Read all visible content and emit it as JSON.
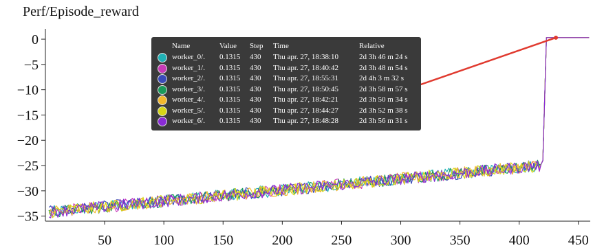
{
  "title": "Perf/Episode_reward",
  "chart_data": {
    "type": "line",
    "title": "Perf/Episode_reward",
    "xlabel": "",
    "ylabel": "",
    "xlim": [
      0,
      460
    ],
    "ylim": [
      -36,
      1.5
    ],
    "xticks": [
      50,
      100,
      150,
      200,
      250,
      300,
      350,
      400,
      450
    ],
    "yticks": [
      0,
      -5,
      -10,
      -15,
      -20,
      -25,
      -30,
      -35
    ],
    "grid": false,
    "series": [
      {
        "name": "worker_0/.",
        "color": "#20b2b6"
      },
      {
        "name": "worker_1/.",
        "color": "#c83bb8"
      },
      {
        "name": "worker_2/.",
        "color": "#3b4bb8"
      },
      {
        "name": "worker_3/.",
        "color": "#1a9a5a"
      },
      {
        "name": "worker_4/.",
        "color": "#f2b82c"
      },
      {
        "name": "worker_5/.",
        "color": "#d6d616"
      },
      {
        "name": "worker_6/.",
        "color": "#8a2bd6"
      }
    ],
    "trend": {
      "x": [
        3,
        418,
        420,
        423,
        460
      ],
      "y": [
        -34.2,
        -25.0,
        -24.0,
        0.3,
        0.3
      ]
    },
    "noise_amplitude": 1.2,
    "highlight": {
      "x": [
        314,
        431
      ],
      "y": [
        -9.2,
        0.3
      ],
      "color": "#e03a2f"
    }
  },
  "tooltip": {
    "headers": {
      "name": "Name",
      "value": "Value",
      "step": "Step",
      "time": "Time",
      "relative": "Relative"
    },
    "rows": [
      {
        "name": "worker_0/.",
        "value": "0.1315",
        "step": "430",
        "time": "Thu apr. 27, 18:38:10",
        "relative": "2d 3h 46 m 24 s",
        "color": "#20b2b6"
      },
      {
        "name": "worker_1/.",
        "value": "0.1315",
        "step": "430",
        "time": "Thu apr. 27, 18:40:42",
        "relative": "2d 3h 48 m 54 s",
        "color": "#c83bb8"
      },
      {
        "name": "worker_2/.",
        "value": "0.1315",
        "step": "430",
        "time": "Thu apr. 27, 18:55:31",
        "relative": "2d 4h 3 m 32 s",
        "color": "#3b4bb8"
      },
      {
        "name": "worker_3/.",
        "value": "0.1315",
        "step": "430",
        "time": "Thu apr. 27, 18:50:45",
        "relative": "2d 3h 58 m 57 s",
        "color": "#1a9a5a"
      },
      {
        "name": "worker_4/.",
        "value": "0.1315",
        "step": "430",
        "time": "Thu apr. 27, 18:42:21",
        "relative": "2d 3h 50 m 34 s",
        "color": "#f2b82c"
      },
      {
        "name": "worker_5/.",
        "value": "0.1315",
        "step": "430",
        "time": "Thu apr. 27, 18:44:27",
        "relative": "2d 3h 52 m 38 s",
        "color": "#d6d616"
      },
      {
        "name": "worker_6/.",
        "value": "0.1315",
        "step": "430",
        "time": "Thu apr. 27, 18:48:28",
        "relative": "2d 3h 56 m 31 s",
        "color": "#8a2bd6"
      }
    ]
  }
}
